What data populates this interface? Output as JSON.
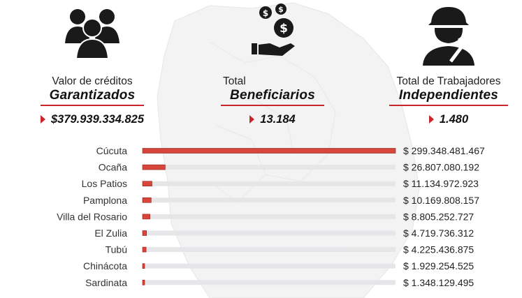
{
  "stats": {
    "creditos": {
      "label": "Valor de créditos",
      "emphasis": "Garantizados",
      "value": "$379.939.334.825",
      "icon": "people-group-icon"
    },
    "beneficiarios": {
      "label": "Total",
      "emphasis": "Beneficiarios",
      "value": "13.184",
      "icon": "hand-coins-icon"
    },
    "independientes": {
      "label": "Total de Trabajadores",
      "emphasis": "Independientes",
      "value": "1.480",
      "icon": "worker-hardhat-icon"
    }
  },
  "colors": {
    "accent": "#c9262b",
    "bar_fill": "#d8453a",
    "track": "#e6e6e8",
    "map": "#f2f2f2"
  },
  "chart_data": {
    "type": "bar",
    "orientation": "horizontal",
    "categories": [
      "Cúcuta",
      "Ocaña",
      "Los Patios",
      "Pamplona",
      "Villa del Rosario",
      "El Zulia",
      "Tubú",
      "Chinácota",
      "Sardinata"
    ],
    "values": [
      299348481467,
      26807080192,
      11134972923,
      10169808157,
      8805252727,
      4719736312,
      4225436875,
      1929254525,
      1348129495
    ],
    "value_labels": [
      "$ 299.348.481.467",
      "$ 26.807.080.192",
      "$ 11.134.972.923",
      "$ 10.169.808.157",
      "$ 8.805.252.727",
      "$ 4.719.736.312",
      "$ 4.225.436.875",
      "$ 1.929.254.525",
      "$ 1.348.129.495"
    ],
    "xlim": [
      0,
      299348481467
    ],
    "title": "",
    "xlabel": "",
    "ylabel": "",
    "grid": false,
    "legend": "none"
  }
}
